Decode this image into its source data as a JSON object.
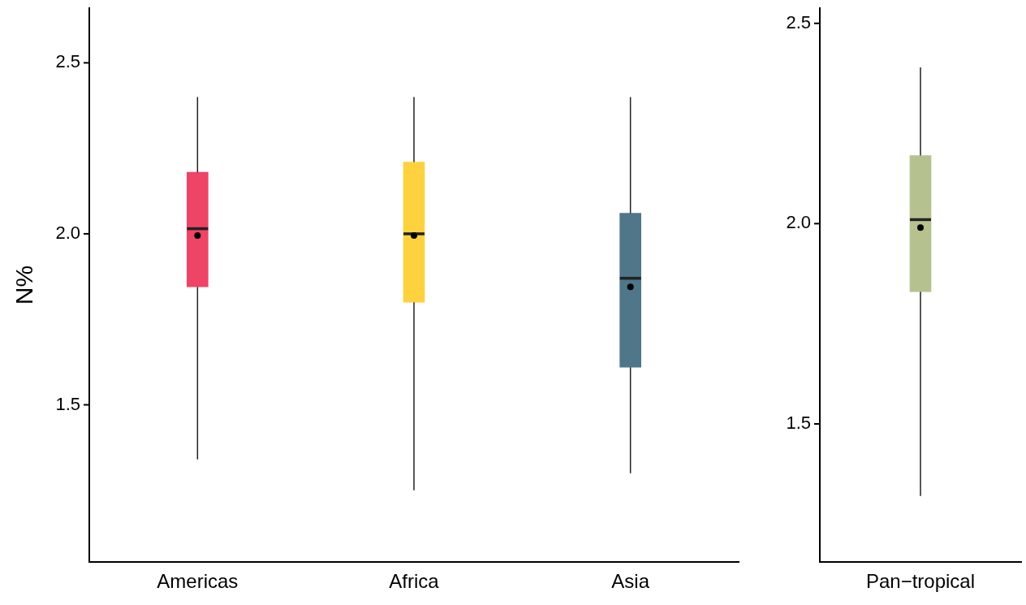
{
  "chart_data": [
    {
      "type": "box",
      "ylabel": "N%",
      "categories": [
        "Americas",
        "Africa",
        "Asia"
      ],
      "colors": [
        "#ee4466",
        "#fed23f",
        "#4f7689"
      ],
      "boxes": [
        {
          "low": 1.34,
          "q1": 1.845,
          "median": 2.015,
          "q3": 2.18,
          "high": 2.4,
          "mean": 1.995
        },
        {
          "low": 1.25,
          "q1": 1.8,
          "median": 2.0,
          "q3": 2.21,
          "high": 2.4,
          "mean": 1.995
        },
        {
          "low": 1.3,
          "q1": 1.61,
          "median": 1.87,
          "q3": 2.06,
          "high": 2.4,
          "mean": 1.845
        }
      ],
      "ylim": [
        1.04,
        2.66
      ],
      "yticks": [
        {
          "value": 1.5,
          "label": "1.5"
        },
        {
          "value": 2,
          "label": "2.0"
        },
        {
          "value": 2.5,
          "label": "2.5"
        }
      ],
      "grid": false,
      "legend": false
    },
    {
      "type": "box",
      "categories": [
        "Pan−tropical"
      ],
      "colors": [
        "#b5c28f"
      ],
      "boxes": [
        {
          "low": 1.32,
          "q1": 1.83,
          "median": 2.01,
          "q3": 2.17,
          "high": 2.39,
          "mean": 1.99
        }
      ],
      "ylim": [
        1.155,
        2.538
      ],
      "yticks": [
        {
          "value": 1.5,
          "label": "1.5"
        },
        {
          "value": 2,
          "label": "2.0"
        },
        {
          "value": 2.5,
          "label": "2.5"
        }
      ],
      "grid": false,
      "legend": false
    }
  ]
}
